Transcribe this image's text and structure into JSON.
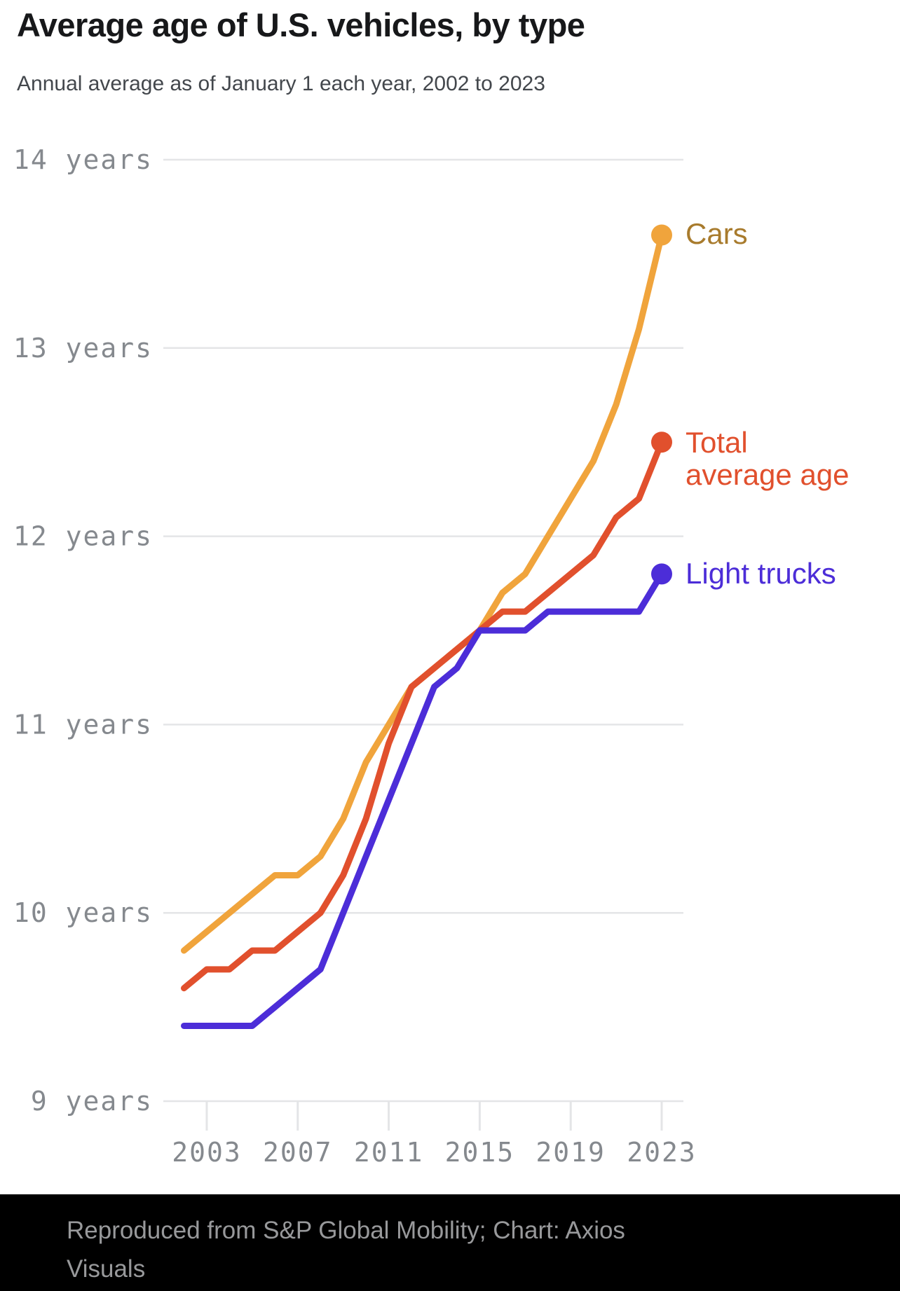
{
  "header": {
    "title": "Average age of U.S. vehicles, by type",
    "subtitle": "Annual average as of January 1 each year, 2002 to 2023"
  },
  "legend": {
    "cars": "Cars",
    "total_line1": "Total",
    "total_line2": "average age",
    "light_trucks": "Light trucks"
  },
  "colors": {
    "cars_line": "#f0a43c",
    "cars_label": "#a87b2d",
    "total_line": "#e1502d",
    "total_label": "#e1502d",
    "trucks_line": "#4c2dd8",
    "trucks_label": "#4c2dd8",
    "gridline": "#e4e5e7",
    "axis_text": "#85898e",
    "footer_bg": "#000000",
    "footer_text": "#98999b"
  },
  "chart_data": {
    "type": "line",
    "title": "Average age of U.S. vehicles, by type",
    "subtitle": "Annual average as of January 1 each year, 2002 to 2023",
    "x": [
      2002,
      2003,
      2004,
      2005,
      2006,
      2007,
      2008,
      2009,
      2010,
      2011,
      2012,
      2013,
      2014,
      2015,
      2016,
      2017,
      2018,
      2019,
      2020,
      2021,
      2022,
      2023
    ],
    "series": [
      {
        "name": "Cars",
        "color": "#f0a43c",
        "values": [
          9.8,
          9.9,
          10.0,
          10.1,
          10.2,
          10.2,
          10.3,
          10.5,
          10.8,
          11.0,
          11.2,
          11.3,
          11.4,
          11.5,
          11.7,
          11.8,
          12.0,
          12.2,
          12.4,
          12.7,
          13.1,
          13.6
        ]
      },
      {
        "name": "Total average age",
        "color": "#e1502d",
        "values": [
          9.6,
          9.7,
          9.7,
          9.8,
          9.8,
          9.9,
          10.0,
          10.2,
          10.5,
          10.9,
          11.2,
          11.3,
          11.4,
          11.5,
          11.6,
          11.6,
          11.7,
          11.8,
          11.9,
          12.1,
          12.2,
          12.5
        ]
      },
      {
        "name": "Light trucks",
        "color": "#4c2dd8",
        "values": [
          9.4,
          9.4,
          9.4,
          9.4,
          9.5,
          9.6,
          9.7,
          10.0,
          10.3,
          10.6,
          10.9,
          11.2,
          11.3,
          11.5,
          11.5,
          11.5,
          11.6,
          11.6,
          11.6,
          11.6,
          11.6,
          11.8
        ]
      }
    ],
    "x_range": [
      2002,
      2023
    ],
    "y_range": [
      9,
      14
    ],
    "x_ticks": [
      2003,
      2007,
      2011,
      2015,
      2019,
      2023
    ],
    "x_tick_labels": [
      "2003",
      "2007",
      "2011",
      "2015",
      "2019",
      "2023"
    ],
    "y_ticks": [
      14,
      13,
      12,
      11,
      10,
      9
    ],
    "y_tick_labels": [
      "14 years",
      "13 years",
      "12 years",
      "11 years",
      "10 years",
      "9 years"
    ],
    "grid": true,
    "legend_position": "right of line ends",
    "xlabel": "",
    "ylabel": ""
  },
  "footer": {
    "credit": "Reproduced from S&P Global Mobility; Chart: Axios Visuals"
  }
}
